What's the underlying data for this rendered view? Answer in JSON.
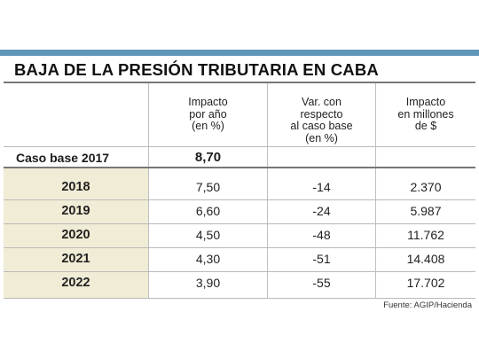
{
  "title": "BAJA DE LA PRESIÓN TRIBUTARIA EN CABA",
  "headers": {
    "col1": [
      "Impacto",
      "por año",
      "(en %)"
    ],
    "col2": [
      "Var. con",
      "respecto",
      "al caso base",
      "(en %)"
    ],
    "col3": [
      "Impacto",
      "en millones",
      "de $"
    ]
  },
  "base": {
    "label": "Caso base 2017",
    "impacto": "8,70"
  },
  "rows": [
    {
      "year": "2018",
      "impacto": "7,50",
      "var": "-14",
      "millones": "2.370"
    },
    {
      "year": "2019",
      "impacto": "6,60",
      "var": "-24",
      "millones": "5.987"
    },
    {
      "year": "2020",
      "impacto": "4,50",
      "var": "-48",
      "millones": "11.762"
    },
    {
      "year": "2021",
      "impacto": "4,30",
      "var": "-51",
      "millones": "14.408"
    },
    {
      "year": "2022",
      "impacto": "3,90",
      "var": "-55",
      "millones": "17.702"
    }
  ],
  "source": "Fuente: AGIP/Hacienda",
  "chart_data": {
    "type": "table",
    "title": "BAJA DE LA PRESIÓN TRIBUTARIA EN CABA",
    "columns": [
      "",
      "Impacto por año (en %)",
      "Var. con respecto al caso base (en %)",
      "Impacto en millones de $"
    ],
    "rows": [
      [
        "Caso base 2017",
        8.7,
        null,
        null
      ],
      [
        "2018",
        7.5,
        -14,
        2370
      ],
      [
        "2019",
        6.6,
        -24,
        5987
      ],
      [
        "2020",
        4.5,
        -48,
        11762
      ],
      [
        "2021",
        4.3,
        -51,
        14408
      ],
      [
        "2022",
        3.9,
        -55,
        17702
      ]
    ]
  }
}
